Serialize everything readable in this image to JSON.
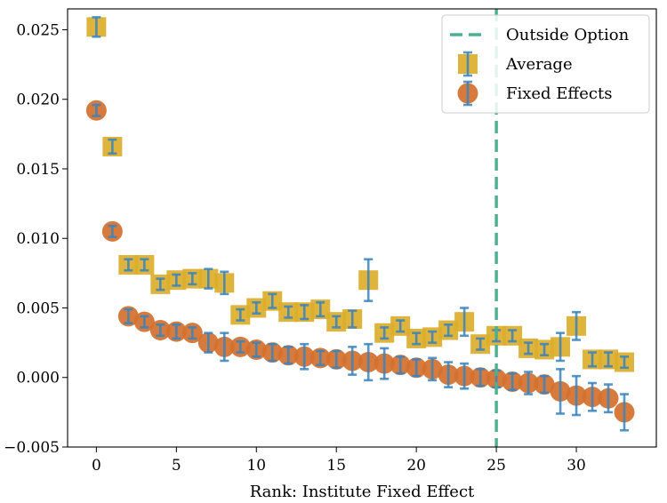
{
  "chart_data": {
    "type": "scatter",
    "title": "",
    "xlabel": "Rank: Institute Fixed Effect",
    "ylabel": "",
    "xlim": [
      -1.8,
      35.0
    ],
    "ylim": [
      -0.005,
      0.0265
    ],
    "xticks": [
      0,
      5,
      10,
      15,
      20,
      25,
      30
    ],
    "yticks": [
      -0.005,
      0.0,
      0.005,
      0.01,
      0.015,
      0.02,
      0.025
    ],
    "ytick_labels": [
      "−0.005",
      "0.000",
      "0.005",
      "0.010",
      "0.015",
      "0.020",
      "0.025"
    ],
    "vline": {
      "name": "Outside Option",
      "x": 25,
      "color": "#4caf8e",
      "style": "dashed"
    },
    "series": [
      {
        "name": "Average",
        "marker": "square",
        "color": "#dcae2b",
        "error_color": "#3a84bd",
        "x": [
          0,
          1,
          2,
          3,
          4,
          5,
          6,
          7,
          8,
          9,
          10,
          11,
          12,
          13,
          14,
          15,
          16,
          17,
          18,
          19,
          20,
          21,
          22,
          23,
          24,
          25,
          26,
          27,
          28,
          29,
          30,
          31,
          32,
          33
        ],
        "y": [
          0.0252,
          0.0166,
          0.0081,
          0.0081,
          0.0067,
          0.007,
          0.0071,
          0.0071,
          0.0068,
          0.0045,
          0.005,
          0.0055,
          0.0047,
          0.0047,
          0.0049,
          0.004,
          0.0042,
          0.007,
          0.0032,
          0.0037,
          0.0028,
          0.0029,
          0.0034,
          0.004,
          0.0024,
          0.003,
          0.003,
          0.0021,
          0.002,
          0.0022,
          0.0037,
          0.0013,
          0.0013,
          0.0011
        ],
        "err": [
          0.0007,
          0.0005,
          0.0004,
          0.0004,
          0.0004,
          0.0004,
          0.0004,
          0.0007,
          0.0008,
          0.0004,
          0.0004,
          0.0005,
          0.0004,
          0.0005,
          0.0005,
          0.0004,
          0.0006,
          0.0015,
          0.0004,
          0.0004,
          0.0004,
          0.0004,
          0.0004,
          0.001,
          0.0004,
          0.0004,
          0.0004,
          0.0004,
          0.0004,
          0.001,
          0.001,
          0.0005,
          0.0005,
          0.0004
        ]
      },
      {
        "name": "Fixed Effects",
        "marker": "circle",
        "color": "#d2702c",
        "error_color": "#3a84bd",
        "x": [
          0,
          1,
          2,
          3,
          4,
          5,
          6,
          7,
          8,
          9,
          10,
          11,
          12,
          13,
          14,
          15,
          16,
          17,
          18,
          19,
          20,
          21,
          22,
          23,
          24,
          25,
          26,
          27,
          28,
          29,
          30,
          31,
          32,
          33
        ],
        "y": [
          0.0192,
          0.0105,
          0.0044,
          0.004,
          0.0034,
          0.0033,
          0.0032,
          0.0025,
          0.0022,
          0.0022,
          0.002,
          0.0018,
          0.0016,
          0.0015,
          0.0014,
          0.0013,
          0.0012,
          0.0011,
          0.001,
          0.0009,
          0.0007,
          0.0006,
          0.0002,
          0.0001,
          0.0,
          -0.0001,
          -0.0003,
          -0.0004,
          -0.0005,
          -0.001,
          -0.0013,
          -0.0014,
          -0.0015,
          -0.0025
        ],
        "err": [
          0.0004,
          0.0004,
          0.0005,
          0.0004,
          0.0004,
          0.0005,
          0.0004,
          0.0007,
          0.001,
          0.0004,
          0.0005,
          0.0006,
          0.0006,
          0.0009,
          0.0005,
          0.0006,
          0.001,
          0.0013,
          0.0011,
          0.0006,
          0.0006,
          0.0008,
          0.0009,
          0.0009,
          0.0006,
          0.0006,
          0.0006,
          0.0008,
          0.0006,
          0.0016,
          0.0014,
          0.001,
          0.001,
          0.0013
        ]
      }
    ],
    "legend": {
      "position": "top-right",
      "entries": [
        "Outside Option",
        "Average",
        "Fixed Effects"
      ]
    }
  }
}
